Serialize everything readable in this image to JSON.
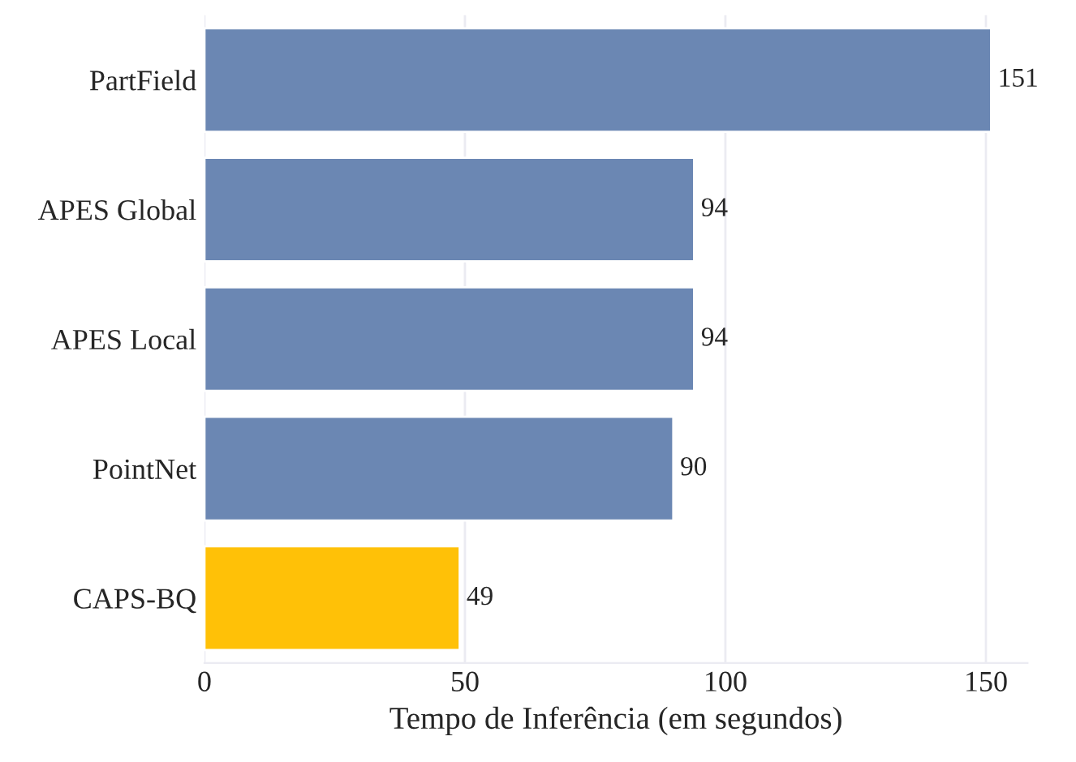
{
  "chart_data": {
    "type": "bar",
    "orientation": "horizontal",
    "categories": [
      "PartField",
      "APES Global",
      "APES Local",
      "PointNet",
      "CAPS-BQ"
    ],
    "values": [
      151,
      94,
      94,
      90,
      49
    ],
    "colors": [
      "#6b87b3",
      "#6b87b3",
      "#6b87b3",
      "#6b87b3",
      "#ffc107"
    ],
    "xlabel": "Tempo de Inferência (em segundos)",
    "xlim": [
      0,
      158
    ],
    "xticks": [
      0,
      50,
      100,
      150
    ],
    "grid": "x",
    "data_labels": true
  }
}
